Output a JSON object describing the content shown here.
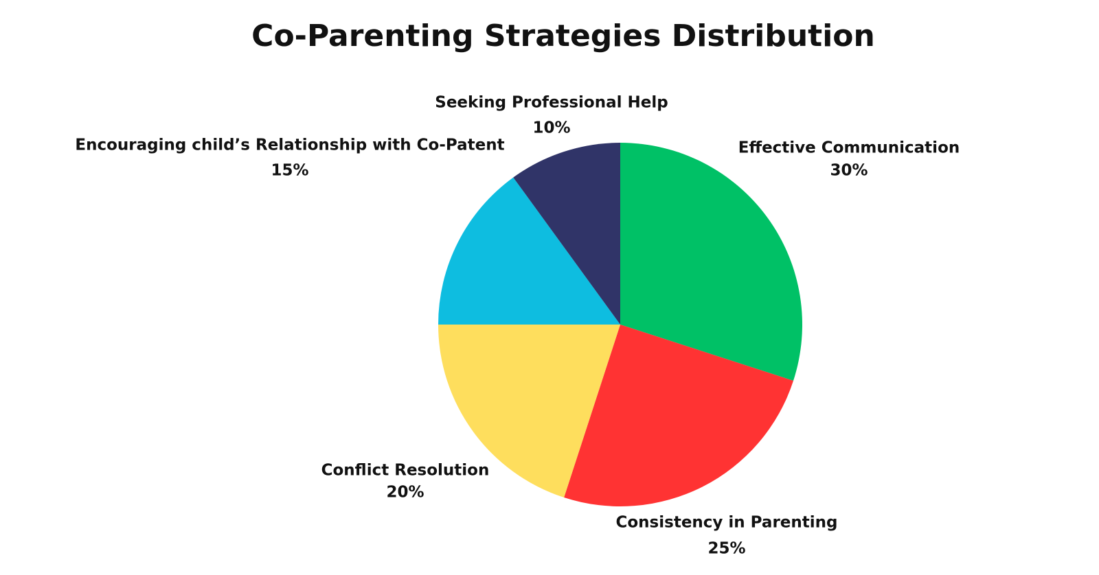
{
  "chart_data": {
    "type": "pie",
    "title": "Co-Parenting Strategies Distribution",
    "categories": [
      "Effective Communication",
      "Consistency in Parenting",
      "Conflict Resolution",
      "Encouraging child’s Relationship with Co-Patent",
      "Seeking Professional Help"
    ],
    "values": [
      30,
      25,
      20,
      15,
      10
    ],
    "value_labels": [
      "30%",
      "25%",
      "20%",
      "15%",
      "10%"
    ],
    "colors": [
      "#00c166",
      "#ff3333",
      "#fede5d",
      "#0ebde0",
      "#303468"
    ]
  }
}
